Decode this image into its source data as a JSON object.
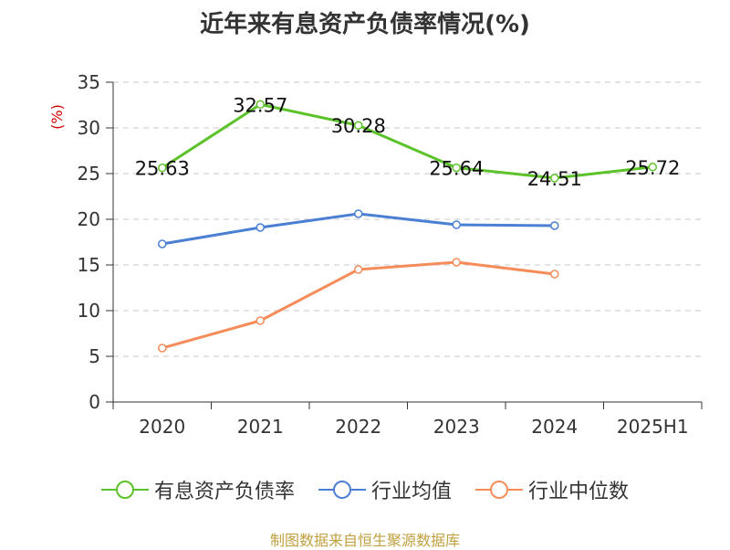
{
  "title": "近年来有息资产负债率情况(%)",
  "source_note": "制图数据来自恒生聚源数据库",
  "colors": {
    "series1": "#5cc229",
    "series2": "#4a7fd4",
    "series3": "#f58c5a",
    "axis_unit": "#cc0000"
  },
  "chart_data": {
    "type": "line",
    "ylabel": "(%)",
    "ylim": [
      0,
      35
    ],
    "yticks": [
      "0",
      "5",
      "10",
      "15",
      "20",
      "25",
      "30",
      "35"
    ],
    "categories": [
      "2020",
      "2021",
      "2022",
      "2023",
      "2024",
      "2025H1"
    ],
    "grid": true,
    "legend_position": "bottom",
    "series": [
      {
        "name": "有息资产负债率",
        "values": [
          25.63,
          32.57,
          30.28,
          25.64,
          24.51,
          25.72
        ],
        "labels": [
          "25.63",
          "32.57",
          "30.28",
          "25.64",
          "24.51",
          "25.72"
        ]
      },
      {
        "name": "行业均值",
        "values": [
          17.3,
          19.1,
          20.6,
          19.4,
          19.3,
          null
        ]
      },
      {
        "name": "行业中位数",
        "values": [
          5.9,
          8.9,
          14.5,
          15.3,
          14.0,
          null
        ]
      }
    ]
  }
}
